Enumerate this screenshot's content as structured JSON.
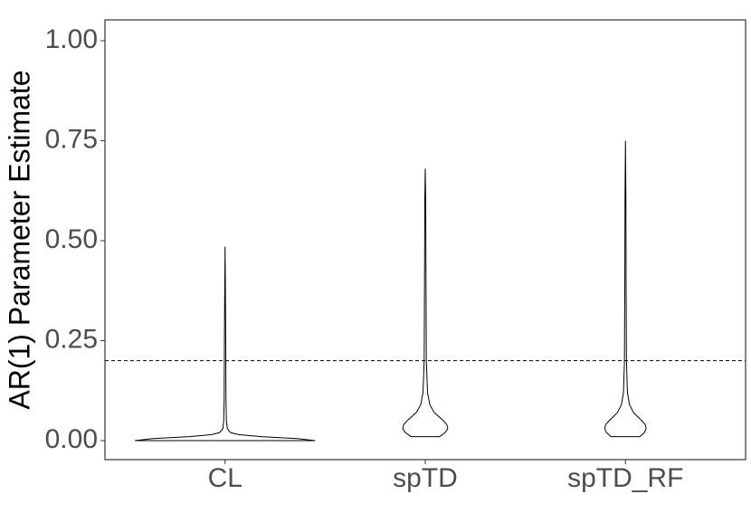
{
  "chart_data": {
    "type": "violin",
    "y_label": "AR(1) Parameter Estimate",
    "categories": [
      "CL",
      "spTD",
      "spTD_RF"
    ],
    "violins": [
      {
        "y": [
          0,
          0.005,
          0.01,
          0.015,
          0.02,
          0.03,
          0.05,
          0.1,
          0.2,
          0.3,
          0.485
        ],
        "width": [
          1,
          0.8,
          0.4,
          0.15,
          0.06,
          0.025,
          0.015,
          0.01,
          0.008,
          0.006,
          0
        ]
      },
      {
        "y": [
          0.01,
          0.02,
          0.03,
          0.04,
          0.05,
          0.07,
          0.09,
          0.12,
          0.2,
          0.4,
          0.6,
          0.68
        ],
        "width": [
          0.16,
          0.22,
          0.25,
          0.24,
          0.2,
          0.1,
          0.05,
          0.025,
          0.012,
          0.008,
          0.005,
          0
        ]
      },
      {
        "y": [
          0.01,
          0.02,
          0.03,
          0.04,
          0.05,
          0.07,
          0.09,
          0.12,
          0.2,
          0.4,
          0.6,
          0.75
        ],
        "width": [
          0.16,
          0.21,
          0.23,
          0.22,
          0.18,
          0.09,
          0.045,
          0.022,
          0.011,
          0.007,
          0.005,
          0
        ]
      }
    ],
    "reference_line": 0.2,
    "color": "#000000",
    "ylim": [
      -0.0475,
      1.052
    ],
    "yticks": [
      {
        "value": 0,
        "label": "0.00"
      },
      {
        "value": 0.25,
        "label": "0.25"
      },
      {
        "value": 0.5,
        "label": "0.50"
      },
      {
        "value": 0.75,
        "label": "0.75"
      },
      {
        "value": 1,
        "label": "1.00"
      }
    ]
  }
}
